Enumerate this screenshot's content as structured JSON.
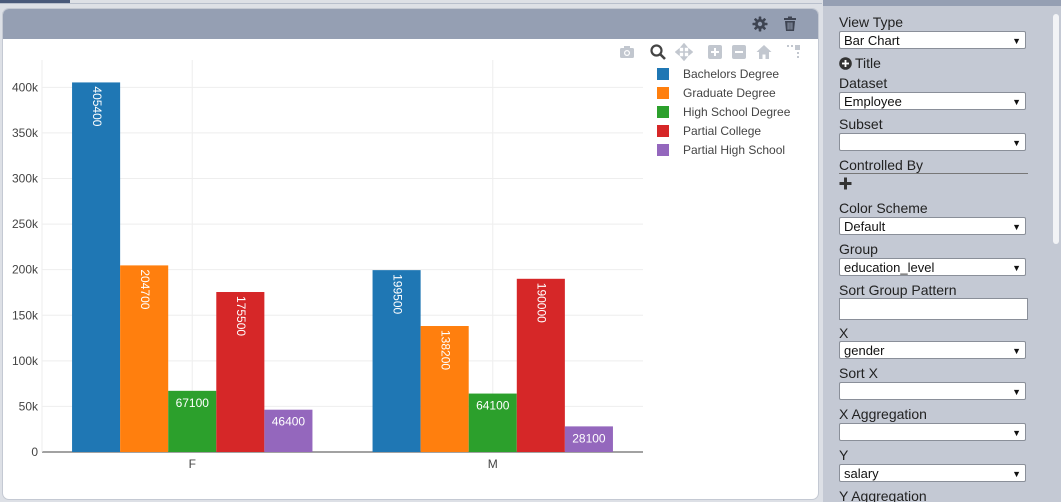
{
  "colors": {
    "header": "#959fb3",
    "panel": "#c4c9d4",
    "series": [
      "#1f77b4",
      "#ff7f0e",
      "#2ca02c",
      "#d62728",
      "#9467bd"
    ]
  },
  "card_header": {
    "icons": [
      "gear-icon",
      "trash-icon"
    ]
  },
  "modebar": {
    "icons": [
      "camera-icon",
      "zoom-icon",
      "pan-icon",
      "zoom-in-icon",
      "zoom-out-icon",
      "home-icon",
      "spike-lines-icon"
    ]
  },
  "chart_data": {
    "type": "bar",
    "categories": [
      "F",
      "M"
    ],
    "series": [
      {
        "name": "Bachelors Degree",
        "values": [
          405400,
          199500
        ]
      },
      {
        "name": "Graduate Degree",
        "values": [
          204700,
          138200
        ]
      },
      {
        "name": "High School Degree",
        "values": [
          67100,
          64100
        ]
      },
      {
        "name": "Partial College",
        "values": [
          175500,
          190000
        ]
      },
      {
        "name": "Partial High School",
        "values": [
          46400,
          28100
        ]
      }
    ],
    "data_labels": [
      [
        "405400",
        "199500"
      ],
      [
        "204700",
        "138200"
      ],
      [
        "67100",
        "64100"
      ],
      [
        "175500",
        "190000"
      ],
      [
        "46400",
        "28100"
      ]
    ],
    "yticks": [
      "0",
      "50k",
      "100k",
      "150k",
      "200k",
      "250k",
      "300k",
      "350k",
      "400k"
    ],
    "ylim": [
      0,
      430000
    ],
    "grid": true,
    "legend_position": "top-right"
  },
  "panel": {
    "view_type_label": "View Type",
    "view_type_value": "Bar Chart",
    "title_toggle": "Title",
    "dataset_label": "Dataset",
    "dataset_value": "Employee",
    "subset_label": "Subset",
    "subset_value": "",
    "controlled_by_label": "Controlled By",
    "color_scheme_label": "Color Scheme",
    "color_scheme_value": "Default",
    "group_label": "Group",
    "group_value": "education_level",
    "sort_group_label": "Sort Group Pattern",
    "sort_group_value": "",
    "x_label": "X",
    "x_value": "gender",
    "sort_x_label": "Sort X",
    "sort_x_value": "",
    "x_agg_label": "X Aggregation",
    "x_agg_value": "",
    "y_label": "Y",
    "y_value": "salary",
    "y_agg_label": "Y Aggregation"
  }
}
